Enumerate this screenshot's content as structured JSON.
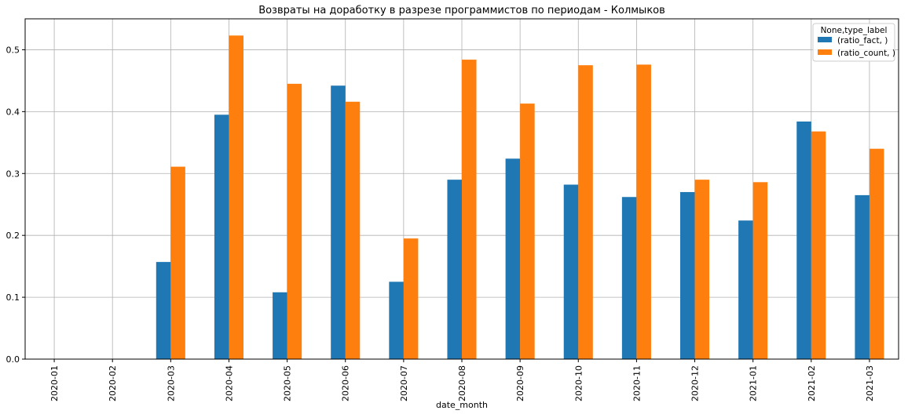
{
  "chart_data": {
    "type": "bar",
    "title": "Возвраты на доработку в разрезе программистов по периодам - Колмыков",
    "xlabel": "date_month",
    "ylabel": "",
    "ylim": [
      0,
      0.55
    ],
    "yticks": [
      "0.0",
      "0.1",
      "0.2",
      "0.3",
      "0.4",
      "0.5"
    ],
    "grid": true,
    "legend_position": "top-right",
    "legend_title": "None,type_label",
    "categories": [
      "2020-01",
      "2020-02",
      "2020-03",
      "2020-04",
      "2020-05",
      "2020-06",
      "2020-07",
      "2020-08",
      "2020-09",
      "2020-10",
      "2020-11",
      "2020-12",
      "2021-01",
      "2021-02",
      "2021-03"
    ],
    "series": [
      {
        "name": "(ratio_fact, )",
        "color": "#1f77b4",
        "values": [
          0,
          0,
          0.157,
          0.395,
          0.108,
          0.442,
          0.125,
          0.29,
          0.324,
          0.282,
          0.262,
          0.27,
          0.224,
          0.384,
          0.265
        ]
      },
      {
        "name": "(ratio_count, )",
        "color": "#ff7f0e",
        "values": [
          0,
          0,
          0.311,
          0.523,
          0.445,
          0.416,
          0.195,
          0.484,
          0.413,
          0.475,
          0.476,
          0.29,
          0.286,
          0.368,
          0.34
        ]
      }
    ]
  }
}
